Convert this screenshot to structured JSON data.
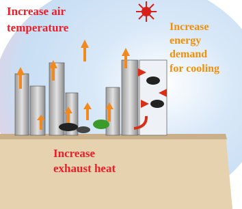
{
  "labels": {
    "air": [
      "Increase air",
      "temperature"
    ],
    "energy": [
      "Increase",
      "energy",
      "demand",
      "for cooling"
    ],
    "exhaust": [
      "Increase",
      "exhaust heat"
    ]
  }
}
